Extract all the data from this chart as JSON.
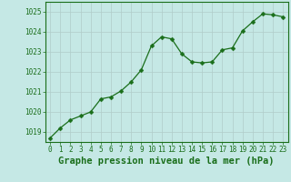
{
  "x": [
    0,
    1,
    2,
    3,
    4,
    5,
    6,
    7,
    8,
    9,
    10,
    11,
    12,
    13,
    14,
    15,
    16,
    17,
    18,
    19,
    20,
    21,
    22,
    23
  ],
  "y": [
    1018.7,
    1019.2,
    1019.6,
    1019.8,
    1020.0,
    1020.65,
    1020.75,
    1021.05,
    1021.5,
    1022.1,
    1023.3,
    1023.75,
    1023.65,
    1022.9,
    1022.5,
    1022.45,
    1022.5,
    1023.1,
    1023.2,
    1024.05,
    1024.5,
    1024.9,
    1024.85,
    1024.75
  ],
  "line_color": "#1a6e1a",
  "marker": "D",
  "marker_size": 2.5,
  "bg_color": "#c5e8e5",
  "grid_color": "#b0ccc9",
  "xlabel": "Graphe pression niveau de la mer (hPa)",
  "xlim": [
    -0.5,
    23.5
  ],
  "ylim": [
    1018.5,
    1025.5
  ],
  "yticks": [
    1019,
    1020,
    1021,
    1022,
    1023,
    1024,
    1025
  ],
  "xticks": [
    0,
    1,
    2,
    3,
    4,
    5,
    6,
    7,
    8,
    9,
    10,
    11,
    12,
    13,
    14,
    15,
    16,
    17,
    18,
    19,
    20,
    21,
    22,
    23
  ],
  "tick_fontsize": 5.5,
  "xlabel_fontsize": 7.5
}
